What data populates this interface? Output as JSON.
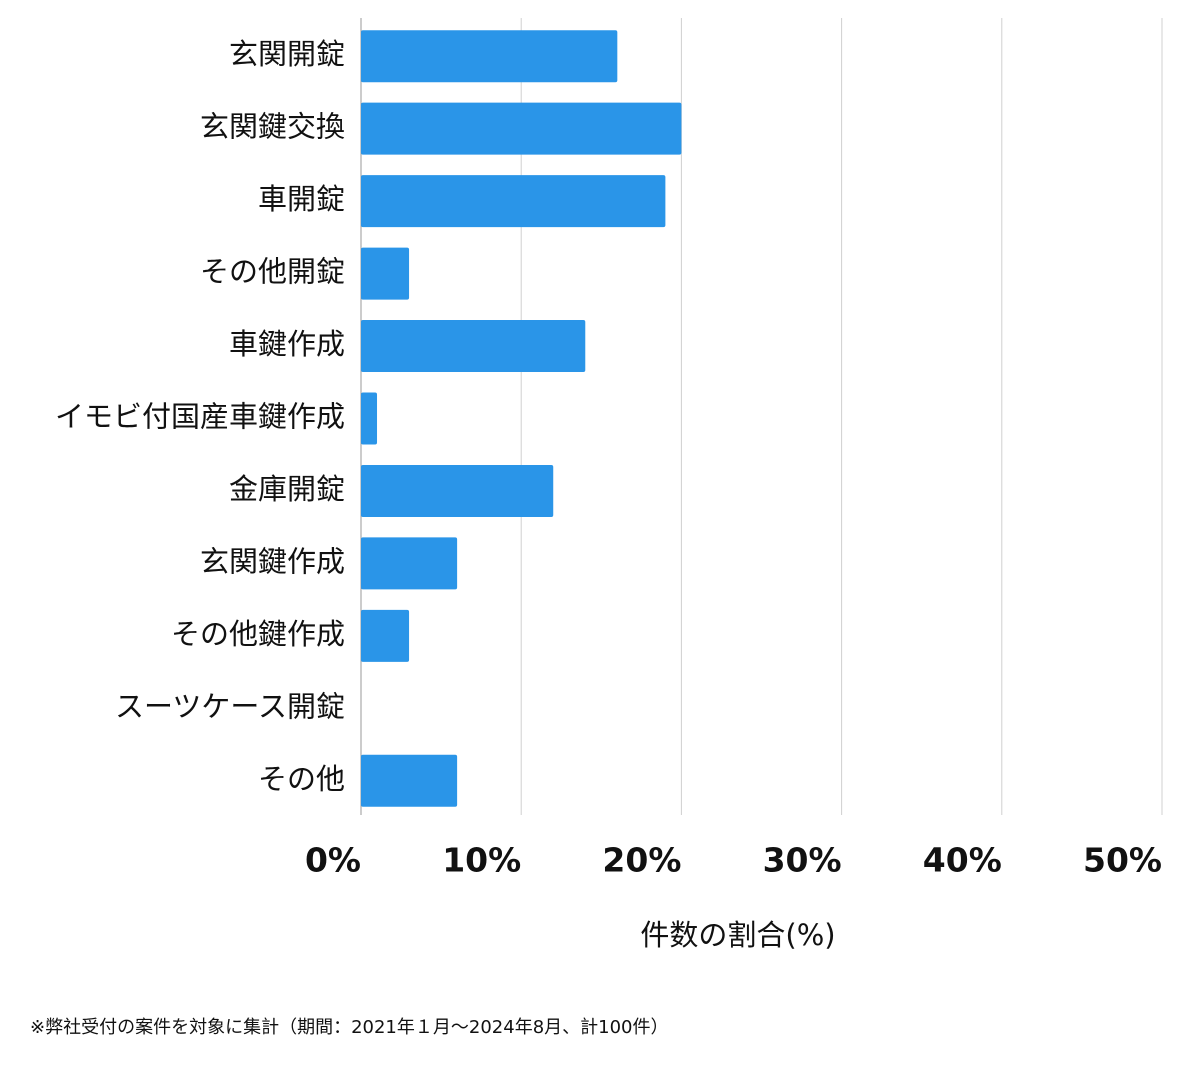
{
  "chart_data": {
    "type": "hbar",
    "categories": [
      "玄関開錠",
      "玄関鍵交換",
      "車開錠",
      "その他開錠",
      "車鍵作成",
      "イモビ付国産車鍵作成",
      "金庫開錠",
      "玄関鍵作成",
      "その他鍵作成",
      "スーツケース開錠",
      "その他"
    ],
    "values": [
      16,
      20,
      19,
      3,
      14,
      1,
      12,
      6,
      3,
      0,
      6
    ],
    "color": "#2a95e8",
    "xlim": [
      0,
      50
    ],
    "xticks": [
      {
        "value": 0,
        "label": "0%"
      },
      {
        "value": 10,
        "label": "10%"
      },
      {
        "value": 20,
        "label": "20%"
      },
      {
        "value": 30,
        "label": "30%"
      },
      {
        "value": 40,
        "label": "40%"
      },
      {
        "value": 50,
        "label": "50%"
      }
    ],
    "x_label": "件数の割合(%)",
    "grid": true,
    "footnote": "※弊社受付の案件を対象に集計（期間：2021年１月〜2024年8月、計100件）"
  }
}
